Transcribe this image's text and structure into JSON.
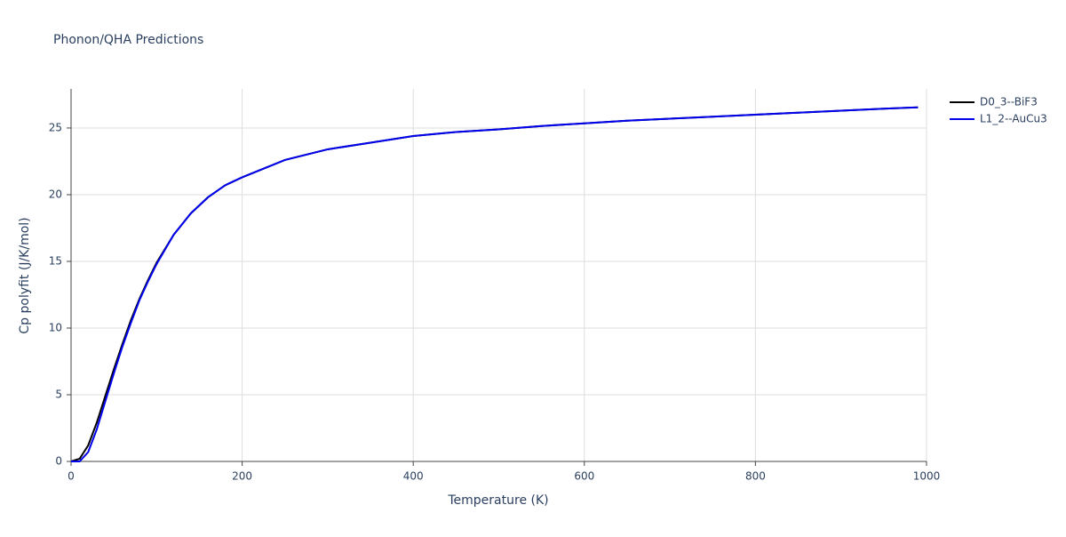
{
  "chart_data": {
    "type": "line",
    "title": "Phonon/QHA Predictions",
    "x_label": "Temperature (K)",
    "y_label": "Cp polyfit (J/K/mol)",
    "x": [
      0,
      10,
      20,
      30,
      40,
      50,
      60,
      70,
      80,
      90,
      100,
      120,
      140,
      160,
      180,
      200,
      250,
      300,
      350,
      400,
      450,
      500,
      550,
      600,
      650,
      700,
      750,
      800,
      850,
      900,
      950,
      990
    ],
    "series": [
      {
        "name": "D0_3--BiF3",
        "color": "#000000",
        "values": [
          0,
          0.2,
          1.2,
          2.9,
          4.9,
          6.9,
          8.8,
          10.6,
          12.2,
          13.6,
          14.9,
          17.0,
          18.6,
          19.8,
          20.7,
          21.3,
          22.6,
          23.4,
          23.9,
          24.4,
          24.7,
          24.9,
          25.15,
          25.35,
          25.55,
          25.7,
          25.85,
          26.0,
          26.15,
          26.3,
          26.45,
          26.55
        ]
      },
      {
        "name": "L1_2--AuCu3",
        "color": "#0000ee",
        "values": [
          0,
          0,
          0.7,
          2.4,
          4.5,
          6.6,
          8.6,
          10.4,
          12.1,
          13.5,
          14.8,
          17.0,
          18.6,
          19.8,
          20.7,
          21.3,
          22.6,
          23.4,
          23.9,
          24.4,
          24.7,
          24.9,
          25.15,
          25.35,
          25.55,
          25.7,
          25.85,
          26.0,
          26.15,
          26.3,
          26.45,
          26.55
        ]
      }
    ],
    "xlim": [
      0,
      1000
    ],
    "xticks": [
      0,
      200,
      400,
      600,
      800,
      1000
    ],
    "ylim": [
      0,
      27.93
    ],
    "yticks": [
      0,
      5,
      10,
      15,
      20,
      25
    ],
    "grid": true,
    "legend": "top-right"
  }
}
